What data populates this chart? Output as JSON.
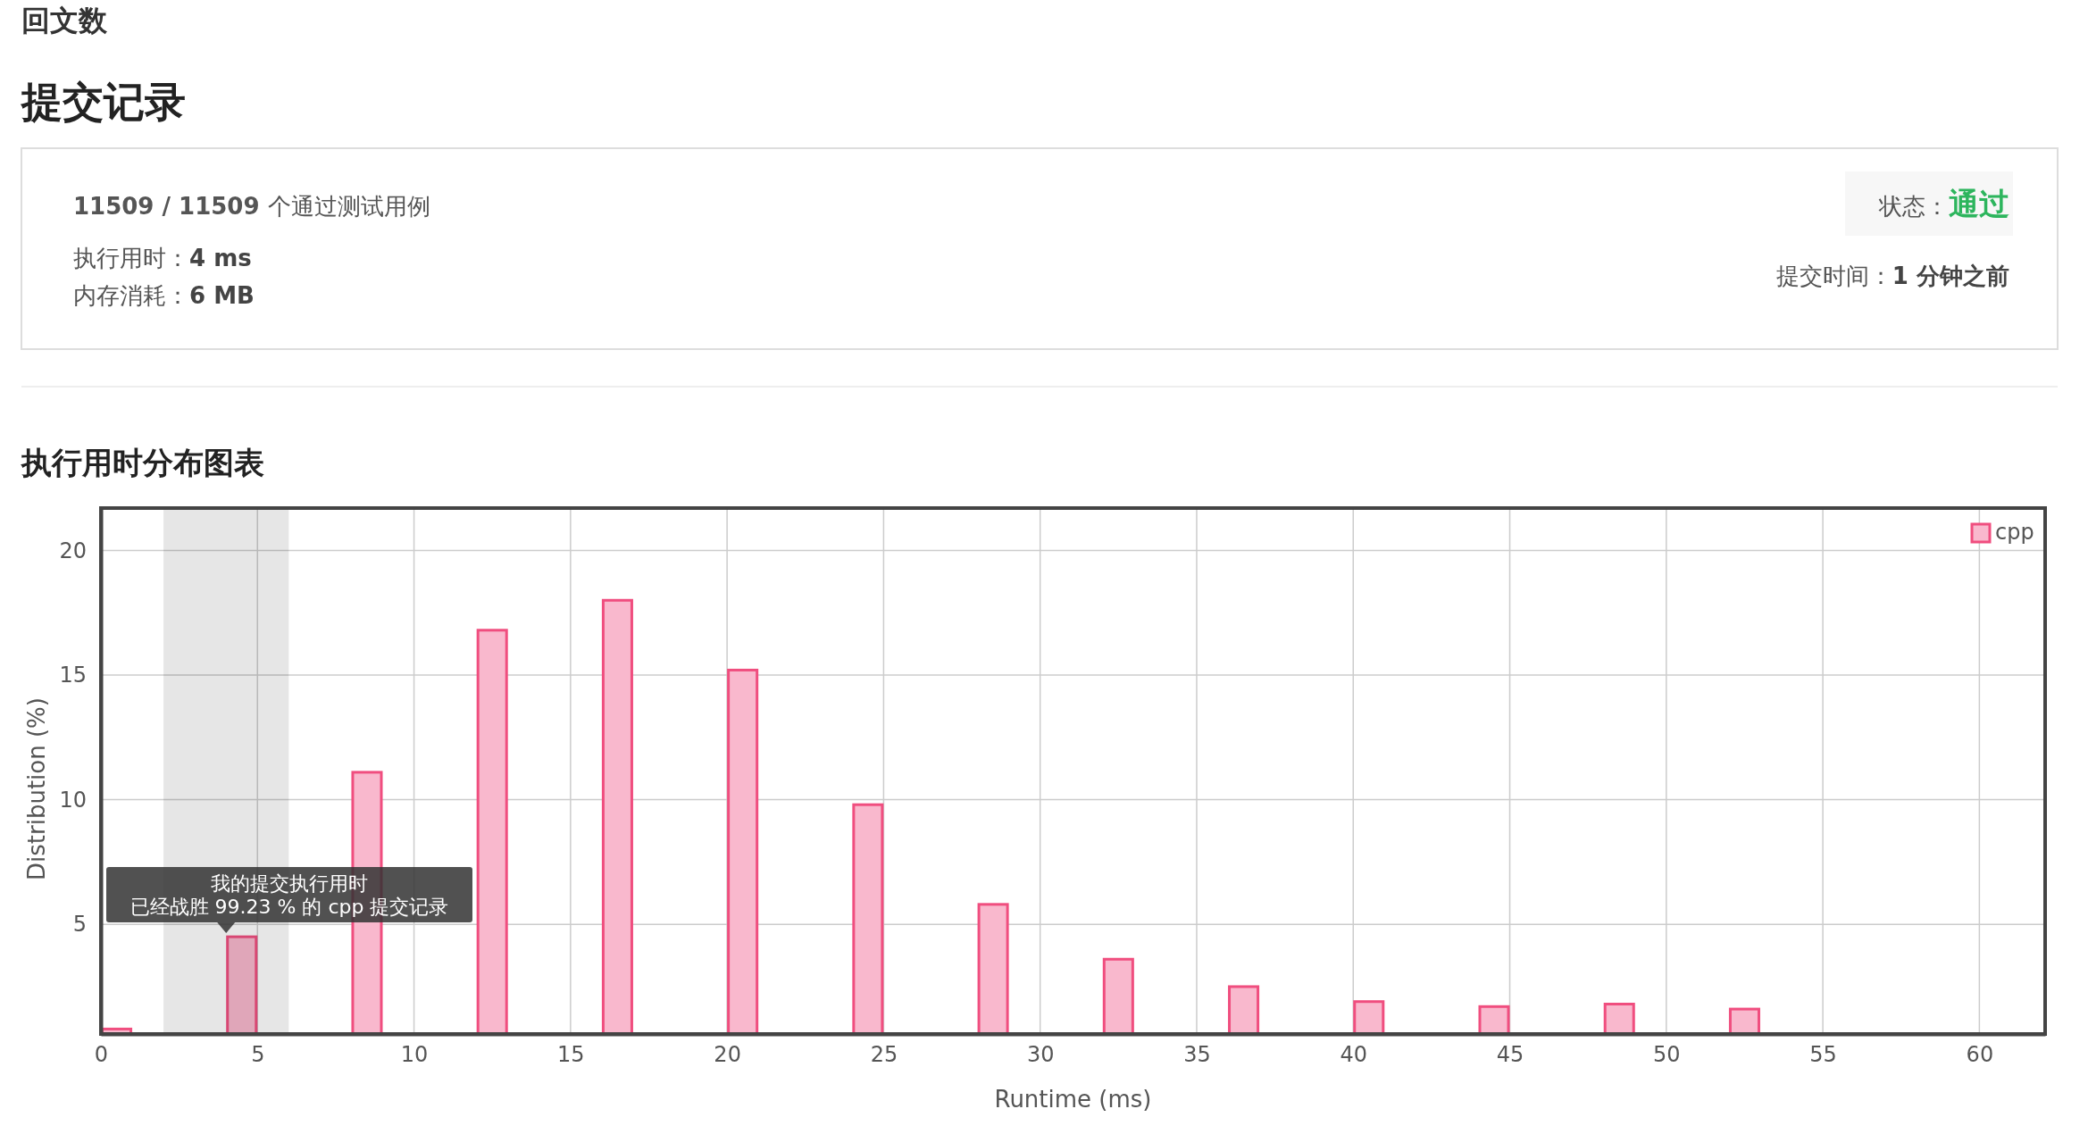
{
  "chart_data": {
    "type": "bar",
    "title": "执行用时分布图表",
    "xlabel": "Runtime (ms)",
    "ylabel": "Distribution (%)",
    "x": [
      0.5,
      4.5,
      8.5,
      12.5,
      16.5,
      20.5,
      24.5,
      28.5,
      32.5,
      36.5,
      40.5,
      44.5,
      48.5,
      52.5
    ],
    "series": [
      {
        "name": "cpp",
        "color": "#f9b8cd",
        "values": [
          0.8,
          4.5,
          11.1,
          16.8,
          18.0,
          15.2,
          9.8,
          5.8,
          3.6,
          2.5,
          1.9,
          1.7,
          1.8,
          1.6
        ]
      }
    ],
    "xlim": [
      0,
      62.1
    ],
    "ylim": [
      0.6,
      21.7
    ],
    "xticks": [
      0,
      5,
      10,
      15,
      20,
      25,
      30,
      35,
      40,
      45,
      50,
      55,
      60
    ],
    "yticks": [
      5,
      10,
      15,
      20
    ],
    "grid": true,
    "legend": "top right",
    "bands": [
      {
        "axis": "x",
        "from": 2,
        "to": 6,
        "color": "#e6e6e6"
      }
    ],
    "annotations": [
      "回文数",
      "提交记录",
      "11509 / 11509 个通过测试用例",
      "执行用时：4 ms",
      "内存消耗：6 MB",
      "状态：通过",
      "提交时间：1 分钟之前",
      "我的提交执行用时",
      "已经战胜 99.23 % 的 cpp 提交记录"
    ]
  }
}
